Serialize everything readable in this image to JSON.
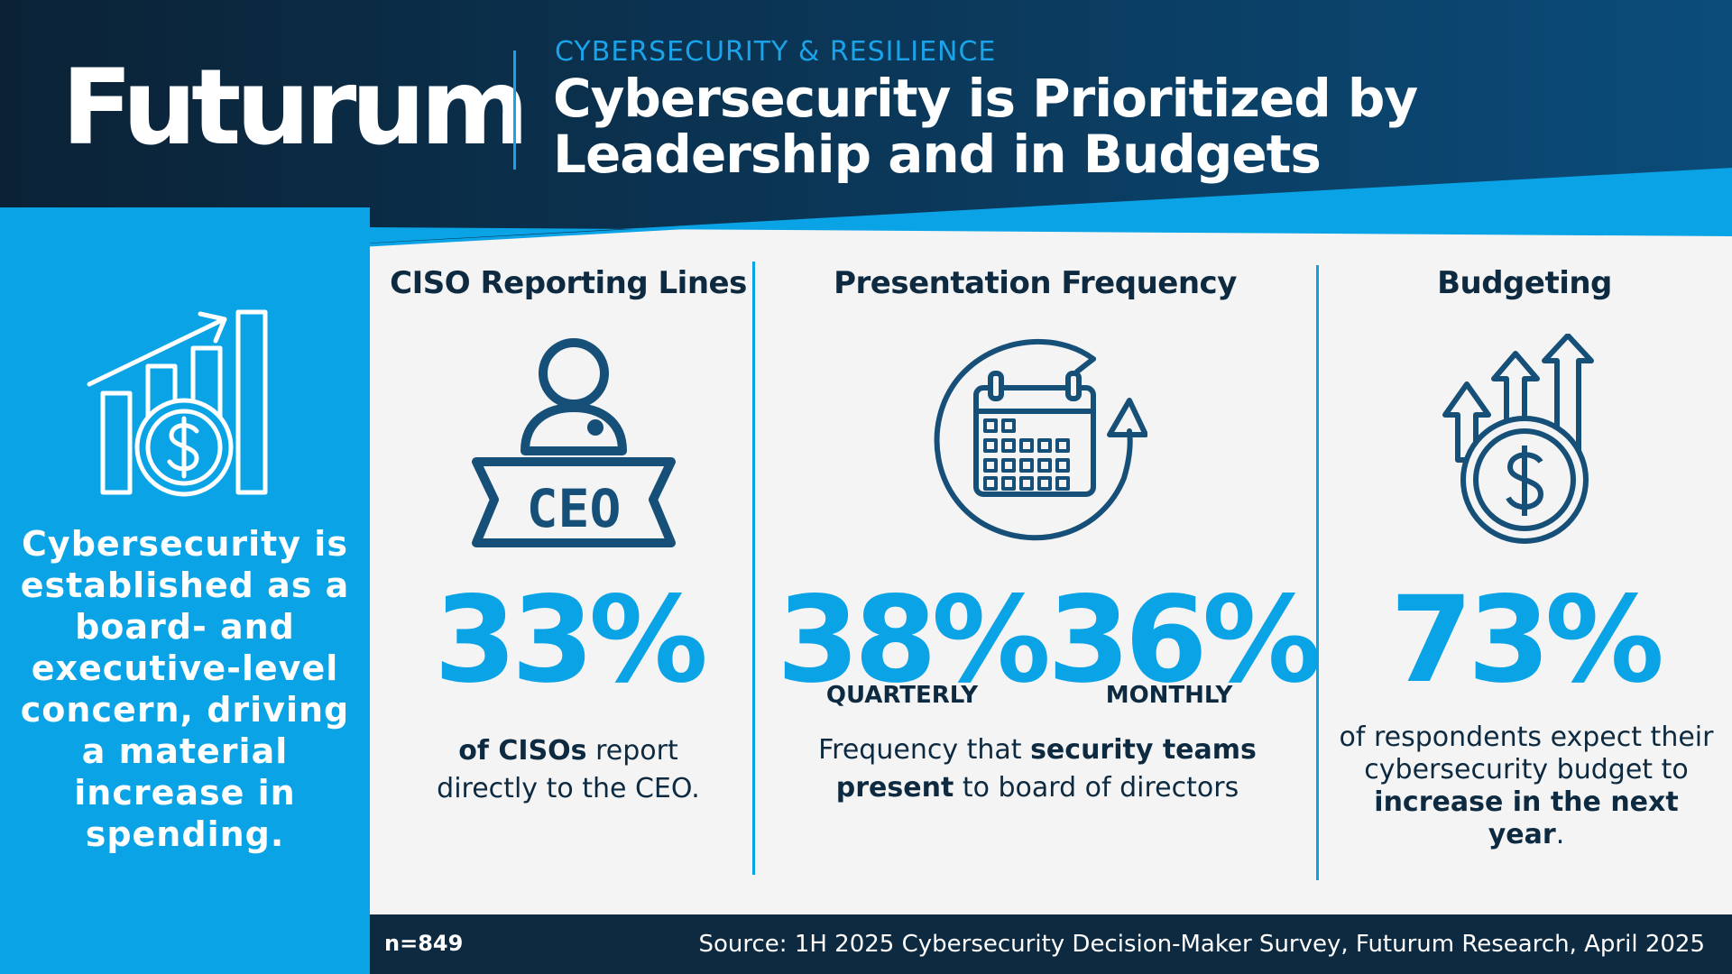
{
  "brand": {
    "logo_text": "Futurum"
  },
  "header": {
    "eyebrow": "CYBERSECURITY & RESILIENCE",
    "title": "Cybersecurity is Prioritized by Leadership and in Budgets"
  },
  "left_panel": {
    "icon": "growth-chart-dollar-icon",
    "text": "Cybersecurity is established as a board- and executive-level concern, driving a material increase in spending."
  },
  "columns": {
    "ciso": {
      "heading": "CISO Reporting Lines",
      "icon": "ceo-person-icon",
      "icon_badge": "CEO",
      "value": "33%",
      "desc_bold": "of CISOs",
      "desc_rest": " report directly to the CEO."
    },
    "frequency": {
      "heading": "Presentation Frequency",
      "icon": "calendar-cycle-icon",
      "values": [
        {
          "value": "38%",
          "label": "QUARTERLY"
        },
        {
          "value": "36%",
          "label": "MONTHLY"
        }
      ],
      "desc_pre": "Frequency that ",
      "desc_bold": "security teams present",
      "desc_post": " to board of directors"
    },
    "budget": {
      "heading": "Budgeting",
      "icon": "budget-increase-icon",
      "value": "73%",
      "desc_pre": "of respondents expect their cybersecurity budget to ",
      "desc_bold": "increase in the next year",
      "desc_post": "."
    }
  },
  "footer": {
    "sample": "n=849",
    "source": "Source: 1H 2025 Cybersecurity Decision-Maker Survey, Futurum Research, April 2025"
  },
  "colors": {
    "navy": "#0d2a40",
    "accent": "#0aa3e6",
    "background": "#f4f4f4",
    "icon_stroke": "#164f78"
  }
}
